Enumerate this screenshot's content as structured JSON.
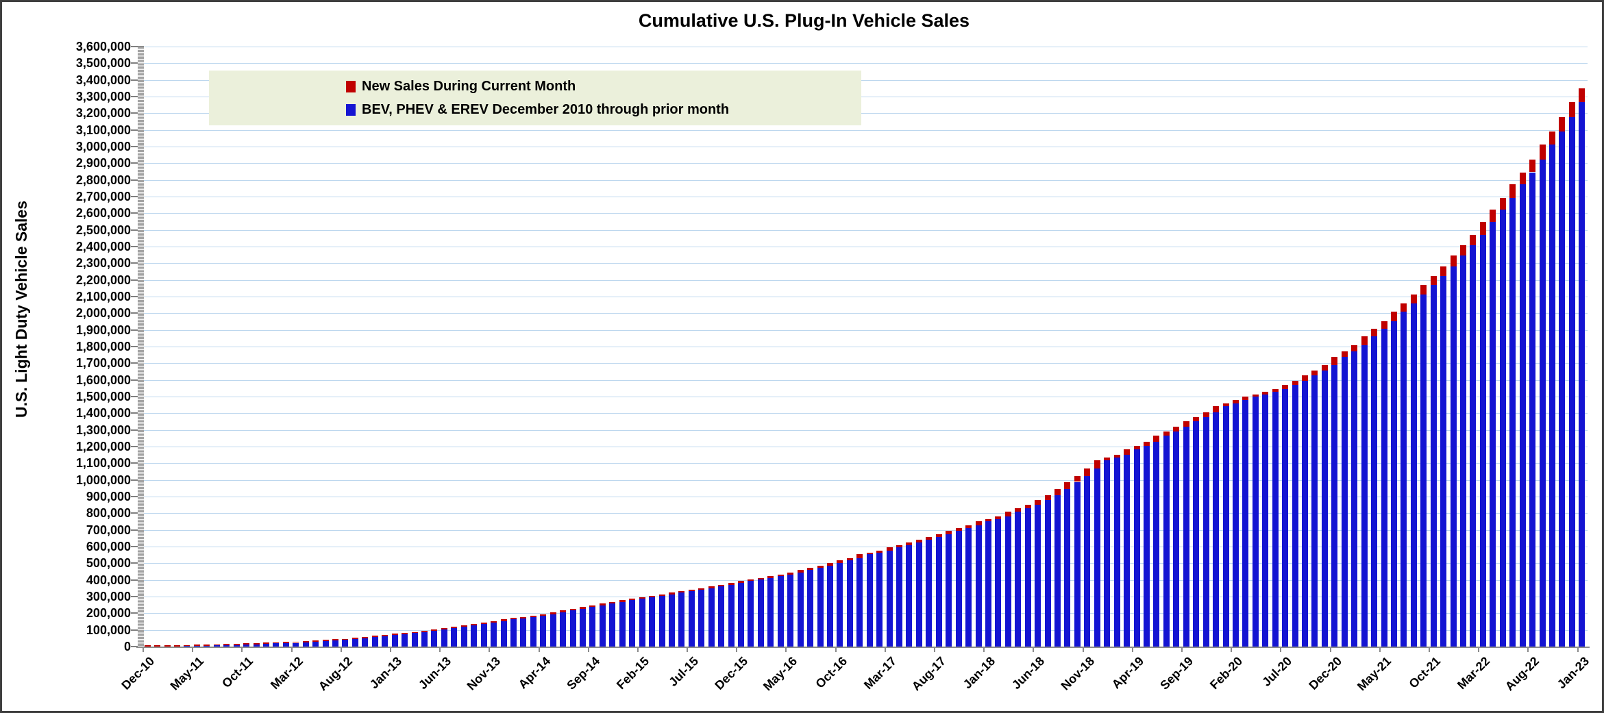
{
  "window": {
    "background": "#ffffff",
    "border_color": "#3f3f3f"
  },
  "chart_data": {
    "type": "bar",
    "stacked": true,
    "title": "Cumulative U.S. Plug-In Vehicle Sales",
    "ylabel": "U.S. Light Duty Vehicle Sales",
    "xlabel": "",
    "ylim": [
      0,
      3600000
    ],
    "y_tick_step": 100000,
    "x_tick_label_every": 5,
    "grid": "horizontal",
    "gridline_color": "#bdd7ee",
    "axis_color": "#8c8c8c",
    "legend_position": "top-left-inside",
    "legend_background": "#ebf0db",
    "categories": [
      "Dec-10",
      "Jan-11",
      "Feb-11",
      "Mar-11",
      "Apr-11",
      "May-11",
      "Jun-11",
      "Jul-11",
      "Aug-11",
      "Sep-11",
      "Oct-11",
      "Nov-11",
      "Dec-11",
      "Jan-12",
      "Feb-12",
      "Mar-12",
      "Apr-12",
      "May-12",
      "Jun-12",
      "Jul-12",
      "Aug-12",
      "Sep-12",
      "Oct-12",
      "Nov-12",
      "Dec-12",
      "Jan-13",
      "Feb-13",
      "Mar-13",
      "Apr-13",
      "May-13",
      "Jun-13",
      "Jul-13",
      "Aug-13",
      "Sep-13",
      "Oct-13",
      "Nov-13",
      "Dec-13",
      "Jan-14",
      "Feb-14",
      "Mar-14",
      "Apr-14",
      "May-14",
      "Jun-14",
      "Jul-14",
      "Aug-14",
      "Sep-14",
      "Oct-14",
      "Nov-14",
      "Dec-14",
      "Jan-15",
      "Feb-15",
      "Mar-15",
      "Apr-15",
      "May-15",
      "Jun-15",
      "Jul-15",
      "Aug-15",
      "Sep-15",
      "Oct-15",
      "Nov-15",
      "Dec-15",
      "Jan-16",
      "Feb-16",
      "Mar-16",
      "Apr-16",
      "May-16",
      "Jun-16",
      "Jul-16",
      "Aug-16",
      "Sep-16",
      "Oct-16",
      "Nov-16",
      "Dec-16",
      "Jan-17",
      "Feb-17",
      "Mar-17",
      "Apr-17",
      "May-17",
      "Jun-17",
      "Jul-17",
      "Aug-17",
      "Sep-17",
      "Oct-17",
      "Nov-17",
      "Dec-17",
      "Jan-18",
      "Feb-18",
      "Mar-18",
      "Apr-18",
      "May-18",
      "Jun-18",
      "Jul-18",
      "Aug-18",
      "Sep-18",
      "Oct-18",
      "Nov-18",
      "Dec-18",
      "Jan-19",
      "Feb-19",
      "Mar-19",
      "Apr-19",
      "May-19",
      "Jun-19",
      "Jul-19",
      "Aug-19",
      "Sep-19",
      "Oct-19",
      "Nov-19",
      "Dec-19",
      "Jan-20",
      "Feb-20",
      "Mar-20",
      "Apr-20",
      "May-20",
      "Jun-20",
      "Jul-20",
      "Aug-20",
      "Sep-20",
      "Oct-20",
      "Nov-20",
      "Dec-20",
      "Jan-21",
      "Feb-21",
      "Mar-21",
      "Apr-21",
      "May-21",
      "Jun-21",
      "Jul-21",
      "Aug-21",
      "Sep-21",
      "Oct-21",
      "Nov-21",
      "Dec-21",
      "Jan-22",
      "Feb-22",
      "Mar-22",
      "Apr-22",
      "May-22",
      "Jun-22",
      "Jul-22",
      "Aug-22",
      "Sep-22",
      "Oct-22",
      "Nov-22",
      "Dec-22",
      "Jan-23"
    ],
    "series": [
      {
        "name": "New Sales During Current Month",
        "color": "#c00000",
        "values": [
          345,
          427,
          627,
          864,
          973,
          1623,
          1708,
          1279,
          1664,
          1881,
          2326,
          2228,
          2661,
          1626,
          2370,
          3843,
          2545,
          3562,
          3708,
          3200,
          4715,
          5997,
          6535,
          6876,
          7193,
          4510,
          5478,
          7140,
          6043,
          7691,
          8605,
          6977,
          10162,
          7914,
          9042,
          9300,
          9883,
          6110,
          6963,
          9350,
          9027,
          11540,
          10550,
          10700,
          11242,
          9418,
          10201,
          10326,
          12053,
          6534,
          6814,
          9027,
          9046,
          11115,
          9574,
          8597,
          9602,
          9587,
          9361,
          10525,
          13289,
          6821,
          8528,
          12315,
          11582,
          12067,
          13309,
          13316,
          14061,
          16974,
          13942,
          13673,
          23288,
          11004,
          12375,
          18542,
          13367,
          16596,
          17046,
          15540,
          16514,
          21325,
          14315,
          17178,
          26107,
          12049,
          16820,
          26373,
          19023,
          24560,
          25179,
          29514,
          36380,
          44589,
          34094,
          44926,
          49900,
          16200,
          18900,
          31000,
          21500,
          25600,
          37000,
          24500,
          28000,
          32000,
          24000,
          28000,
          39900,
          17000,
          19000,
          22000,
          11000,
          14000,
          19000,
          24000,
          26000,
          32000,
          30000,
          33000,
          49000,
          33000,
          35000,
          52000,
          46000,
          48000,
          56000,
          49000,
          52000,
          60000,
          52000,
          58000,
          67000,
          60000,
          62000,
          79000,
          71000,
          73000,
          81000,
          72000,
          78000,
          88000,
          79000,
          85000,
          90000,
          83000
        ]
      },
      {
        "name": "BEV, PHEV & EREV December 2010 through prior month",
        "color": "#1414d2",
        "derivation": "cumulative_total minus current month new sales"
      }
    ],
    "cumulative_total": [
      345,
      772,
      1399,
      2263,
      3236,
      4859,
      6567,
      7846,
      9510,
      11391,
      13717,
      15945,
      18606,
      20232,
      22602,
      26445,
      28990,
      32552,
      36260,
      39460,
      44175,
      50172,
      56707,
      63583,
      70776,
      75286,
      80764,
      87904,
      93947,
      101638,
      110243,
      117220,
      127382,
      135296,
      144338,
      153638,
      163521,
      169631,
      176594,
      185944,
      194971,
      206511,
      217061,
      227761,
      239003,
      248421,
      258622,
      268948,
      281001,
      287535,
      294349,
      303376,
      312422,
      323537,
      333111,
      341708,
      351310,
      360897,
      370258,
      380783,
      394072,
      400893,
      409421,
      421736,
      433318,
      445385,
      458694,
      472010,
      486071,
      503045,
      516987,
      530660,
      553948,
      564952,
      577327,
      595869,
      609236,
      625832,
      642878,
      658418,
      674932,
      696257,
      710572,
      727750,
      753857,
      765906,
      782726,
      809099,
      828122,
      852682,
      877861,
      907375,
      943755,
      988344,
      1022438,
      1067364,
      1117264,
      1133464,
      1152364,
      1183364,
      1204864,
      1230464,
      1267464,
      1291964,
      1319964,
      1351964,
      1375964,
      1403964,
      1443864,
      1460864,
      1479864,
      1501864,
      1512864,
      1526864,
      1545864,
      1569864,
      1595864,
      1627864,
      1657864,
      1690864,
      1739864,
      1772864,
      1807864,
      1859864,
      1905864,
      1953864,
      2009864,
      2058864,
      2110864,
      2170864,
      2222864,
      2280864,
      2347864,
      2407864,
      2469864,
      2548864,
      2619864,
      2692864,
      2773864,
      2845864,
      2923864,
      3011864,
      3090864,
      3175864,
      3265864,
      3348864
    ]
  }
}
